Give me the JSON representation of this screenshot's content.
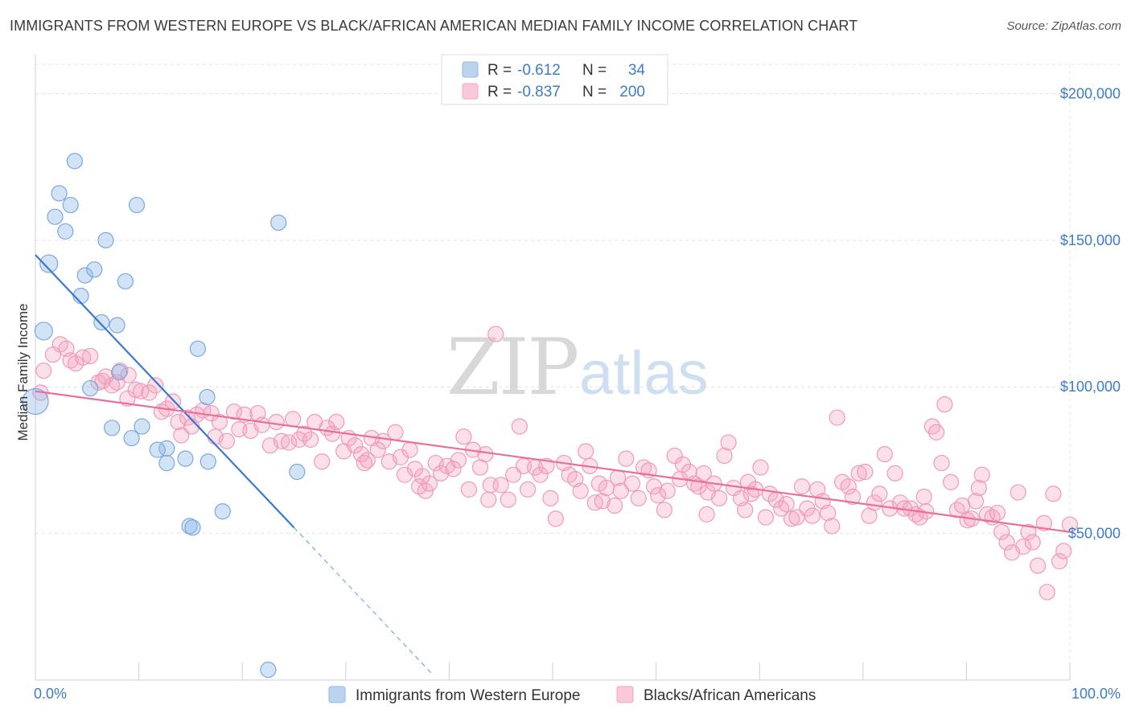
{
  "title": "IMMIGRANTS FROM WESTERN EUROPE VS BLACK/AFRICAN AMERICAN MEDIAN FAMILY INCOME CORRELATION CHART",
  "source": "Source: ZipAtlas.com",
  "watermark": {
    "zip": "ZIP",
    "atlas": "atlas"
  },
  "colors": {
    "blue": "#8fb8e8",
    "blue_line": "#3a78d0",
    "pink": "#f4a3c0",
    "pink_line": "#e8709a",
    "label_blue": "#3d7cc9"
  },
  "chart_data": {
    "type": "scatter",
    "ylabel": "Median Family Income",
    "xlim": [
      0,
      100
    ],
    "ylim": [
      0,
      210000
    ],
    "x_tick_labels": [
      "0.0%",
      "100.0%"
    ],
    "y_ticks": [
      {
        "value": 200000,
        "label": "$200,000"
      },
      {
        "value": 150000,
        "label": "$150,000"
      },
      {
        "value": 100000,
        "label": "$100,000"
      },
      {
        "value": 50000,
        "label": "$50,000"
      }
    ],
    "grid": true,
    "legend_top": [
      {
        "r_label": "R =",
        "r_value": "-0.612",
        "n_label": "N =",
        "n_value": "34"
      },
      {
        "r_label": "R =",
        "r_value": "-0.837",
        "n_label": "N =",
        "n_value": "200"
      }
    ],
    "series": [
      {
        "name": "Immigrants from Western Europe",
        "color": "#8fb8e8",
        "trend": {
          "x0": 0,
          "y0": 145000,
          "x1": 25,
          "y1": 52000,
          "dash_to_x": 38.5,
          "dash_to_y": 1500
        },
        "points": [
          [
            3.8,
            177000
          ],
          [
            2.3,
            166000
          ],
          [
            3.4,
            162000
          ],
          [
            9.8,
            162000
          ],
          [
            1.9,
            158000
          ],
          [
            2.9,
            153000
          ],
          [
            23.5,
            156000
          ],
          [
            6.8,
            150000
          ],
          [
            1.3,
            142000
          ],
          [
            4.8,
            138000
          ],
          [
            5.7,
            140000
          ],
          [
            8.7,
            136000
          ],
          [
            4.4,
            131000
          ],
          [
            6.4,
            122000
          ],
          [
            7.9,
            121000
          ],
          [
            0.8,
            119000
          ],
          [
            15.7,
            113000
          ],
          [
            8.1,
            105000
          ],
          [
            0,
            95000
          ],
          [
            5.3,
            99500
          ],
          [
            16.6,
            96500
          ],
          [
            7.4,
            86000
          ],
          [
            10.3,
            86500
          ],
          [
            9.3,
            82500
          ],
          [
            12.7,
            79000
          ],
          [
            11.8,
            78500
          ],
          [
            14.5,
            75500
          ],
          [
            12.7,
            74000
          ],
          [
            16.7,
            74500
          ],
          [
            25.3,
            71000
          ],
          [
            18.1,
            57500
          ],
          [
            14.9,
            52500
          ],
          [
            15.2,
            52000
          ],
          [
            22.5,
            3500
          ]
        ]
      },
      {
        "name": "Blacks/African Americans",
        "color": "#f4a3c0",
        "trend": {
          "x0": 0,
          "y0": 98500,
          "x1": 100,
          "y1": 50500
        },
        "points": [
          [
            0.5,
            98000
          ],
          [
            0.8,
            105500
          ],
          [
            1.7,
            111000
          ],
          [
            2.4,
            114500
          ],
          [
            3.0,
            113000
          ],
          [
            3.4,
            109000
          ],
          [
            3.9,
            108000
          ],
          [
            5.3,
            110500
          ],
          [
            4.6,
            110000
          ],
          [
            6.1,
            101500
          ],
          [
            6.5,
            102000
          ],
          [
            6.8,
            103500
          ],
          [
            7.4,
            100500
          ],
          [
            7.9,
            101500
          ],
          [
            8.2,
            105500
          ],
          [
            9.0,
            104000
          ],
          [
            8.9,
            96000
          ],
          [
            9.7,
            99000
          ],
          [
            10.2,
            98500
          ],
          [
            11.0,
            98000
          ],
          [
            11.6,
            100500
          ],
          [
            12.2,
            91500
          ],
          [
            12.7,
            92500
          ],
          [
            13.3,
            95000
          ],
          [
            13.8,
            88000
          ],
          [
            14.1,
            83500
          ],
          [
            14.7,
            89500
          ],
          [
            15.1,
            86500
          ],
          [
            15.6,
            90500
          ],
          [
            16.2,
            92000
          ],
          [
            17.0,
            91000
          ],
          [
            17.4,
            83000
          ],
          [
            17.8,
            88000
          ],
          [
            18.5,
            81500
          ],
          [
            19.2,
            91500
          ],
          [
            19.7,
            85500
          ],
          [
            20.2,
            90500
          ],
          [
            20.8,
            85000
          ],
          [
            21.5,
            91000
          ],
          [
            21.9,
            87000
          ],
          [
            22.7,
            80000
          ],
          [
            23.3,
            88000
          ],
          [
            23.8,
            81500
          ],
          [
            24.5,
            81000
          ],
          [
            24.9,
            89000
          ],
          [
            25.5,
            82000
          ],
          [
            26.0,
            84000
          ],
          [
            26.6,
            82000
          ],
          [
            27.0,
            88000
          ],
          [
            27.7,
            74500
          ],
          [
            28.2,
            86000
          ],
          [
            28.7,
            84000
          ],
          [
            29.1,
            88000
          ],
          [
            29.8,
            78000
          ],
          [
            30.3,
            82500
          ],
          [
            30.9,
            80000
          ],
          [
            31.5,
            77000
          ],
          [
            32.1,
            75000
          ],
          [
            32.5,
            82500
          ],
          [
            33.1,
            78500
          ],
          [
            33.6,
            81500
          ],
          [
            34.2,
            74500
          ],
          [
            34.8,
            84500
          ],
          [
            35.3,
            76000
          ],
          [
            35.7,
            70000
          ],
          [
            36.2,
            78500
          ],
          [
            36.7,
            72000
          ],
          [
            37.1,
            66000
          ],
          [
            37.7,
            64500
          ],
          [
            38.1,
            67000
          ],
          [
            38.7,
            74000
          ],
          [
            39.2,
            70500
          ],
          [
            39.8,
            73000
          ],
          [
            40.4,
            72000
          ],
          [
            40.9,
            75000
          ],
          [
            41.4,
            83000
          ],
          [
            41.9,
            65000
          ],
          [
            42.3,
            78500
          ],
          [
            43.0,
            72500
          ],
          [
            43.5,
            77000
          ],
          [
            44.0,
            66500
          ],
          [
            44.5,
            118000
          ],
          [
            45.0,
            66500
          ],
          [
            45.7,
            61500
          ],
          [
            46.2,
            70000
          ],
          [
            46.8,
            86500
          ],
          [
            47.2,
            73000
          ],
          [
            47.6,
            65000
          ],
          [
            48.3,
            72500
          ],
          [
            48.8,
            70000
          ],
          [
            49.4,
            73000
          ],
          [
            49.8,
            62000
          ],
          [
            50.3,
            55000
          ],
          [
            51.1,
            74000
          ],
          [
            51.6,
            70000
          ],
          [
            52.2,
            68500
          ],
          [
            52.7,
            64500
          ],
          [
            53.2,
            78000
          ],
          [
            53.6,
            73000
          ],
          [
            54.1,
            60500
          ],
          [
            54.5,
            67000
          ],
          [
            55.2,
            65500
          ],
          [
            56.0,
            59500
          ],
          [
            56.6,
            64500
          ],
          [
            57.1,
            75500
          ],
          [
            57.7,
            67000
          ],
          [
            58.3,
            62000
          ],
          [
            58.8,
            72500
          ],
          [
            59.3,
            71500
          ],
          [
            59.8,
            66000
          ],
          [
            60.2,
            63000
          ],
          [
            60.8,
            58000
          ],
          [
            61.1,
            64500
          ],
          [
            61.8,
            76500
          ],
          [
            62.3,
            68500
          ],
          [
            62.6,
            73500
          ],
          [
            63.2,
            71000
          ],
          [
            63.7,
            67000
          ],
          [
            64.1,
            66000
          ],
          [
            64.6,
            70500
          ],
          [
            65.0,
            64000
          ],
          [
            65.6,
            67000
          ],
          [
            66.1,
            62000
          ],
          [
            66.6,
            76500
          ],
          [
            67.0,
            81000
          ],
          [
            67.5,
            65500
          ],
          [
            68.2,
            62000
          ],
          [
            68.6,
            58000
          ],
          [
            69.2,
            63500
          ],
          [
            69.6,
            65000
          ],
          [
            70.1,
            72500
          ],
          [
            70.6,
            55500
          ],
          [
            71.0,
            63500
          ],
          [
            71.6,
            61500
          ],
          [
            72.1,
            58500
          ],
          [
            72.6,
            60000
          ],
          [
            73.1,
            55000
          ],
          [
            73.6,
            55500
          ],
          [
            74.1,
            66000
          ],
          [
            74.6,
            58500
          ],
          [
            75.1,
            56000
          ],
          [
            75.6,
            65000
          ],
          [
            76.1,
            61000
          ],
          [
            76.6,
            57000
          ],
          [
            77.0,
            52500
          ],
          [
            77.5,
            89500
          ],
          [
            78.0,
            67500
          ],
          [
            78.6,
            66000
          ],
          [
            79.0,
            62500
          ],
          [
            79.6,
            70500
          ],
          [
            80.2,
            71000
          ],
          [
            80.6,
            56000
          ],
          [
            81.1,
            60500
          ],
          [
            81.6,
            63500
          ],
          [
            82.1,
            77000
          ],
          [
            82.6,
            58500
          ],
          [
            83.1,
            70500
          ],
          [
            83.6,
            60500
          ],
          [
            84.0,
            58500
          ],
          [
            84.6,
            58500
          ],
          [
            85.1,
            56500
          ],
          [
            85.5,
            55500
          ],
          [
            86.1,
            57500
          ],
          [
            86.7,
            86500
          ],
          [
            87.1,
            84500
          ],
          [
            87.6,
            74000
          ],
          [
            87.9,
            94000
          ],
          [
            88.5,
            67500
          ],
          [
            89.1,
            58000
          ],
          [
            89.6,
            59500
          ],
          [
            90.1,
            54500
          ],
          [
            90.5,
            55000
          ],
          [
            90.9,
            61000
          ],
          [
            91.5,
            70000
          ],
          [
            92.0,
            56500
          ],
          [
            92.5,
            55500
          ],
          [
            93.0,
            57000
          ],
          [
            93.4,
            50500
          ],
          [
            93.9,
            47000
          ],
          [
            94.4,
            43500
          ],
          [
            95.0,
            64000
          ],
          [
            95.5,
            45500
          ],
          [
            96.0,
            50500
          ],
          [
            96.4,
            47000
          ],
          [
            96.9,
            39000
          ],
          [
            97.5,
            53500
          ],
          [
            97.8,
            30000
          ],
          [
            98.4,
            63500
          ],
          [
            99.0,
            40500
          ],
          [
            99.4,
            44000
          ],
          [
            100.0,
            53000
          ],
          [
            54.8,
            61000
          ],
          [
            56.3,
            69000
          ],
          [
            64.9,
            56500
          ],
          [
            68.9,
            67500
          ],
          [
            85.9,
            62500
          ],
          [
            91.2,
            65500
          ],
          [
            37.4,
            69500
          ],
          [
            43.8,
            61500
          ],
          [
            31.8,
            74000
          ]
        ]
      }
    ]
  }
}
